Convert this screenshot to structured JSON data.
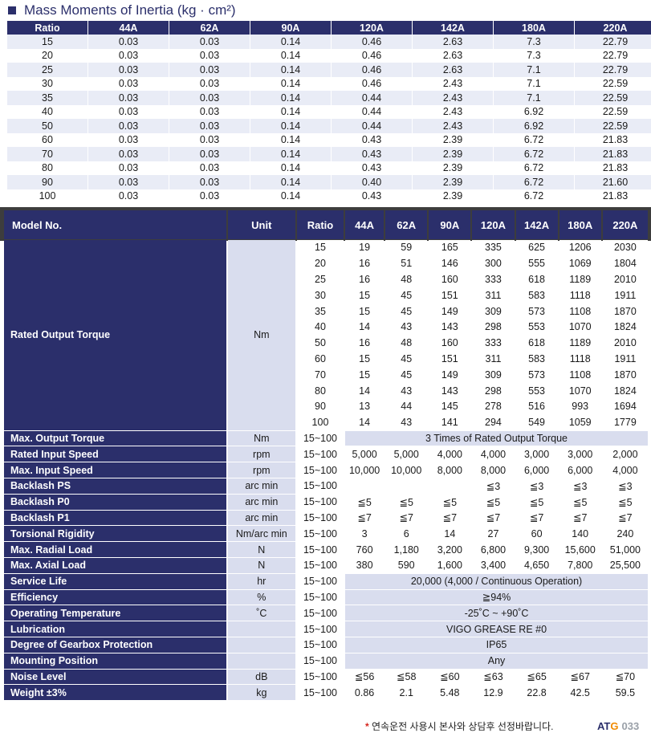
{
  "inertia": {
    "title": "Mass Moments of Inertia (kg · cm²)",
    "headers": [
      "Ratio",
      "44A",
      "62A",
      "90A",
      "120A",
      "142A",
      "180A",
      "220A"
    ],
    "rows": [
      [
        "15",
        "0.03",
        "0.03",
        "0.14",
        "0.46",
        "2.63",
        "7.3",
        "22.79"
      ],
      [
        "20",
        "0.03",
        "0.03",
        "0.14",
        "0.46",
        "2.63",
        "7.3",
        "22.79"
      ],
      [
        "25",
        "0.03",
        "0.03",
        "0.14",
        "0.46",
        "2.63",
        "7.1",
        "22.79"
      ],
      [
        "30",
        "0.03",
        "0.03",
        "0.14",
        "0.46",
        "2.43",
        "7.1",
        "22.59"
      ],
      [
        "35",
        "0.03",
        "0.03",
        "0.14",
        "0.44",
        "2.43",
        "7.1",
        "22.59"
      ],
      [
        "40",
        "0.03",
        "0.03",
        "0.14",
        "0.44",
        "2.43",
        "6.92",
        "22.59"
      ],
      [
        "50",
        "0.03",
        "0.03",
        "0.14",
        "0.44",
        "2.43",
        "6.92",
        "22.59"
      ],
      [
        "60",
        "0.03",
        "0.03",
        "0.14",
        "0.43",
        "2.39",
        "6.72",
        "21.83"
      ],
      [
        "70",
        "0.03",
        "0.03",
        "0.14",
        "0.43",
        "2.39",
        "6.72",
        "21.83"
      ],
      [
        "80",
        "0.03",
        "0.03",
        "0.14",
        "0.43",
        "2.39",
        "6.72",
        "21.83"
      ],
      [
        "90",
        "0.03",
        "0.03",
        "0.14",
        "0.40",
        "2.39",
        "6.72",
        "21.60"
      ],
      [
        "100",
        "0.03",
        "0.03",
        "0.14",
        "0.43",
        "2.39",
        "6.72",
        "21.83"
      ]
    ]
  },
  "spec": {
    "headers": [
      "Model No.",
      "Unit",
      "Ratio",
      "44A",
      "62A",
      "90A",
      "120A",
      "142A",
      "180A",
      "220A"
    ],
    "torque": {
      "name": "Rated Output Torque",
      "unit": "Nm",
      "rows": [
        [
          "15",
          "19",
          "59",
          "165",
          "335",
          "625",
          "1206",
          "2030"
        ],
        [
          "20",
          "16",
          "51",
          "146",
          "300",
          "555",
          "1069",
          "1804"
        ],
        [
          "25",
          "16",
          "48",
          "160",
          "333",
          "618",
          "1189",
          "2010"
        ],
        [
          "30",
          "15",
          "45",
          "151",
          "311",
          "583",
          "1118",
          "1911"
        ],
        [
          "35",
          "15",
          "45",
          "149",
          "309",
          "573",
          "1108",
          "1870"
        ],
        [
          "40",
          "14",
          "43",
          "143",
          "298",
          "553",
          "1070",
          "1824"
        ],
        [
          "50",
          "16",
          "48",
          "160",
          "333",
          "618",
          "1189",
          "2010"
        ],
        [
          "60",
          "15",
          "45",
          "151",
          "311",
          "583",
          "1118",
          "1911"
        ],
        [
          "70",
          "15",
          "45",
          "149",
          "309",
          "573",
          "1108",
          "1870"
        ],
        [
          "80",
          "14",
          "43",
          "143",
          "298",
          "553",
          "1070",
          "1824"
        ],
        [
          "90",
          "13",
          "44",
          "145",
          "278",
          "516",
          "993",
          "1694"
        ],
        [
          "100",
          "14",
          "43",
          "141",
          "294",
          "549",
          "1059",
          "1779"
        ]
      ]
    },
    "rows": [
      {
        "name": "Max. Output  Torque",
        "unit": "Nm",
        "ratio": "15~100",
        "span": "3 Times of Rated Output Torque"
      },
      {
        "name": "Rated Input Speed",
        "unit": "rpm",
        "ratio": "15~100",
        "values": [
          "5,000",
          "5,000",
          "4,000",
          "4,000",
          "3,000",
          "3,000",
          "2,000"
        ]
      },
      {
        "name": "Max. Input Speed",
        "unit": "rpm",
        "ratio": "15~100",
        "values": [
          "10,000",
          "10,000",
          "8,000",
          "8,000",
          "6,000",
          "6,000",
          "4,000"
        ]
      },
      {
        "name": "Backlash  PS",
        "unit": "arc min",
        "ratio": "15~100",
        "values": [
          "",
          "",
          "",
          "≦3",
          "≦3",
          "≦3",
          "≦3"
        ]
      },
      {
        "name": "Backlash  P0",
        "unit": "arc min",
        "ratio": "15~100",
        "values": [
          "≦5",
          "≦5",
          "≦5",
          "≦5",
          "≦5",
          "≦5",
          "≦5"
        ]
      },
      {
        "name": "Backlash  P1",
        "unit": "arc min",
        "ratio": "15~100",
        "values": [
          "≦7",
          "≦7",
          "≦7",
          "≦7",
          "≦7",
          "≦7",
          "≦7"
        ]
      },
      {
        "name": "Torsional Rigidity",
        "unit": "Nm/arc min",
        "ratio": "15~100",
        "values": [
          "3",
          "6",
          "14",
          "27",
          "60",
          "140",
          "240"
        ]
      },
      {
        "name": "Max. Radial Load",
        "unit": "N",
        "ratio": "15~100",
        "values": [
          "760",
          "1,180",
          "3,200",
          "6,800",
          "9,300",
          "15,600",
          "51,000"
        ]
      },
      {
        "name": "Max. Axial Load",
        "unit": "N",
        "ratio": "15~100",
        "values": [
          "380",
          "590",
          "1,600",
          "3,400",
          "4,650",
          "7,800",
          "25,500"
        ]
      },
      {
        "name": "Service Life",
        "unit": "hr",
        "ratio": "15~100",
        "span": "20,000 (4,000 / Continuous Operation)"
      },
      {
        "name": "Efficiency",
        "unit": "%",
        "ratio": "15~100",
        "span": "≧94%"
      },
      {
        "name": "Operating Temperature",
        "unit": "˚C",
        "ratio": "15~100",
        "span": "-25˚C ~ +90˚C"
      },
      {
        "name": "Lubrication",
        "unit": "",
        "ratio": "15~100",
        "span": "VIGO GREASE RE #0"
      },
      {
        "name": "Degree of Gearbox Protection",
        "unit": "",
        "ratio": "15~100",
        "span": "IP65"
      },
      {
        "name": "Mounting Position",
        "unit": "",
        "ratio": "15~100",
        "span": "Any"
      },
      {
        "name": "Noise Level",
        "unit": "dB",
        "ratio": "15~100",
        "values": [
          "≦56",
          "≦58",
          "≦60",
          "≦63",
          "≦65",
          "≦67",
          "≦70"
        ]
      },
      {
        "name": "Weight  ±3%",
        "unit": "kg",
        "ratio": "15~100",
        "values": [
          "0.86",
          "2.1",
          "5.48",
          "12.9",
          "22.8",
          "42.5",
          "59.5"
        ]
      }
    ]
  },
  "footer": {
    "note": "연속운전 사용시 본사와 상담후 선정바랍니다.",
    "asterisk": "*",
    "logo_a": "AT",
    "logo_g": "G",
    "page": "033"
  },
  "colors": {
    "navy": "#2b2f6b",
    "light": "#d9ddee",
    "stripe": "#e9ecf6",
    "band": "#3d3d3d",
    "accent": "#f08a00",
    "red": "#d5261e"
  }
}
